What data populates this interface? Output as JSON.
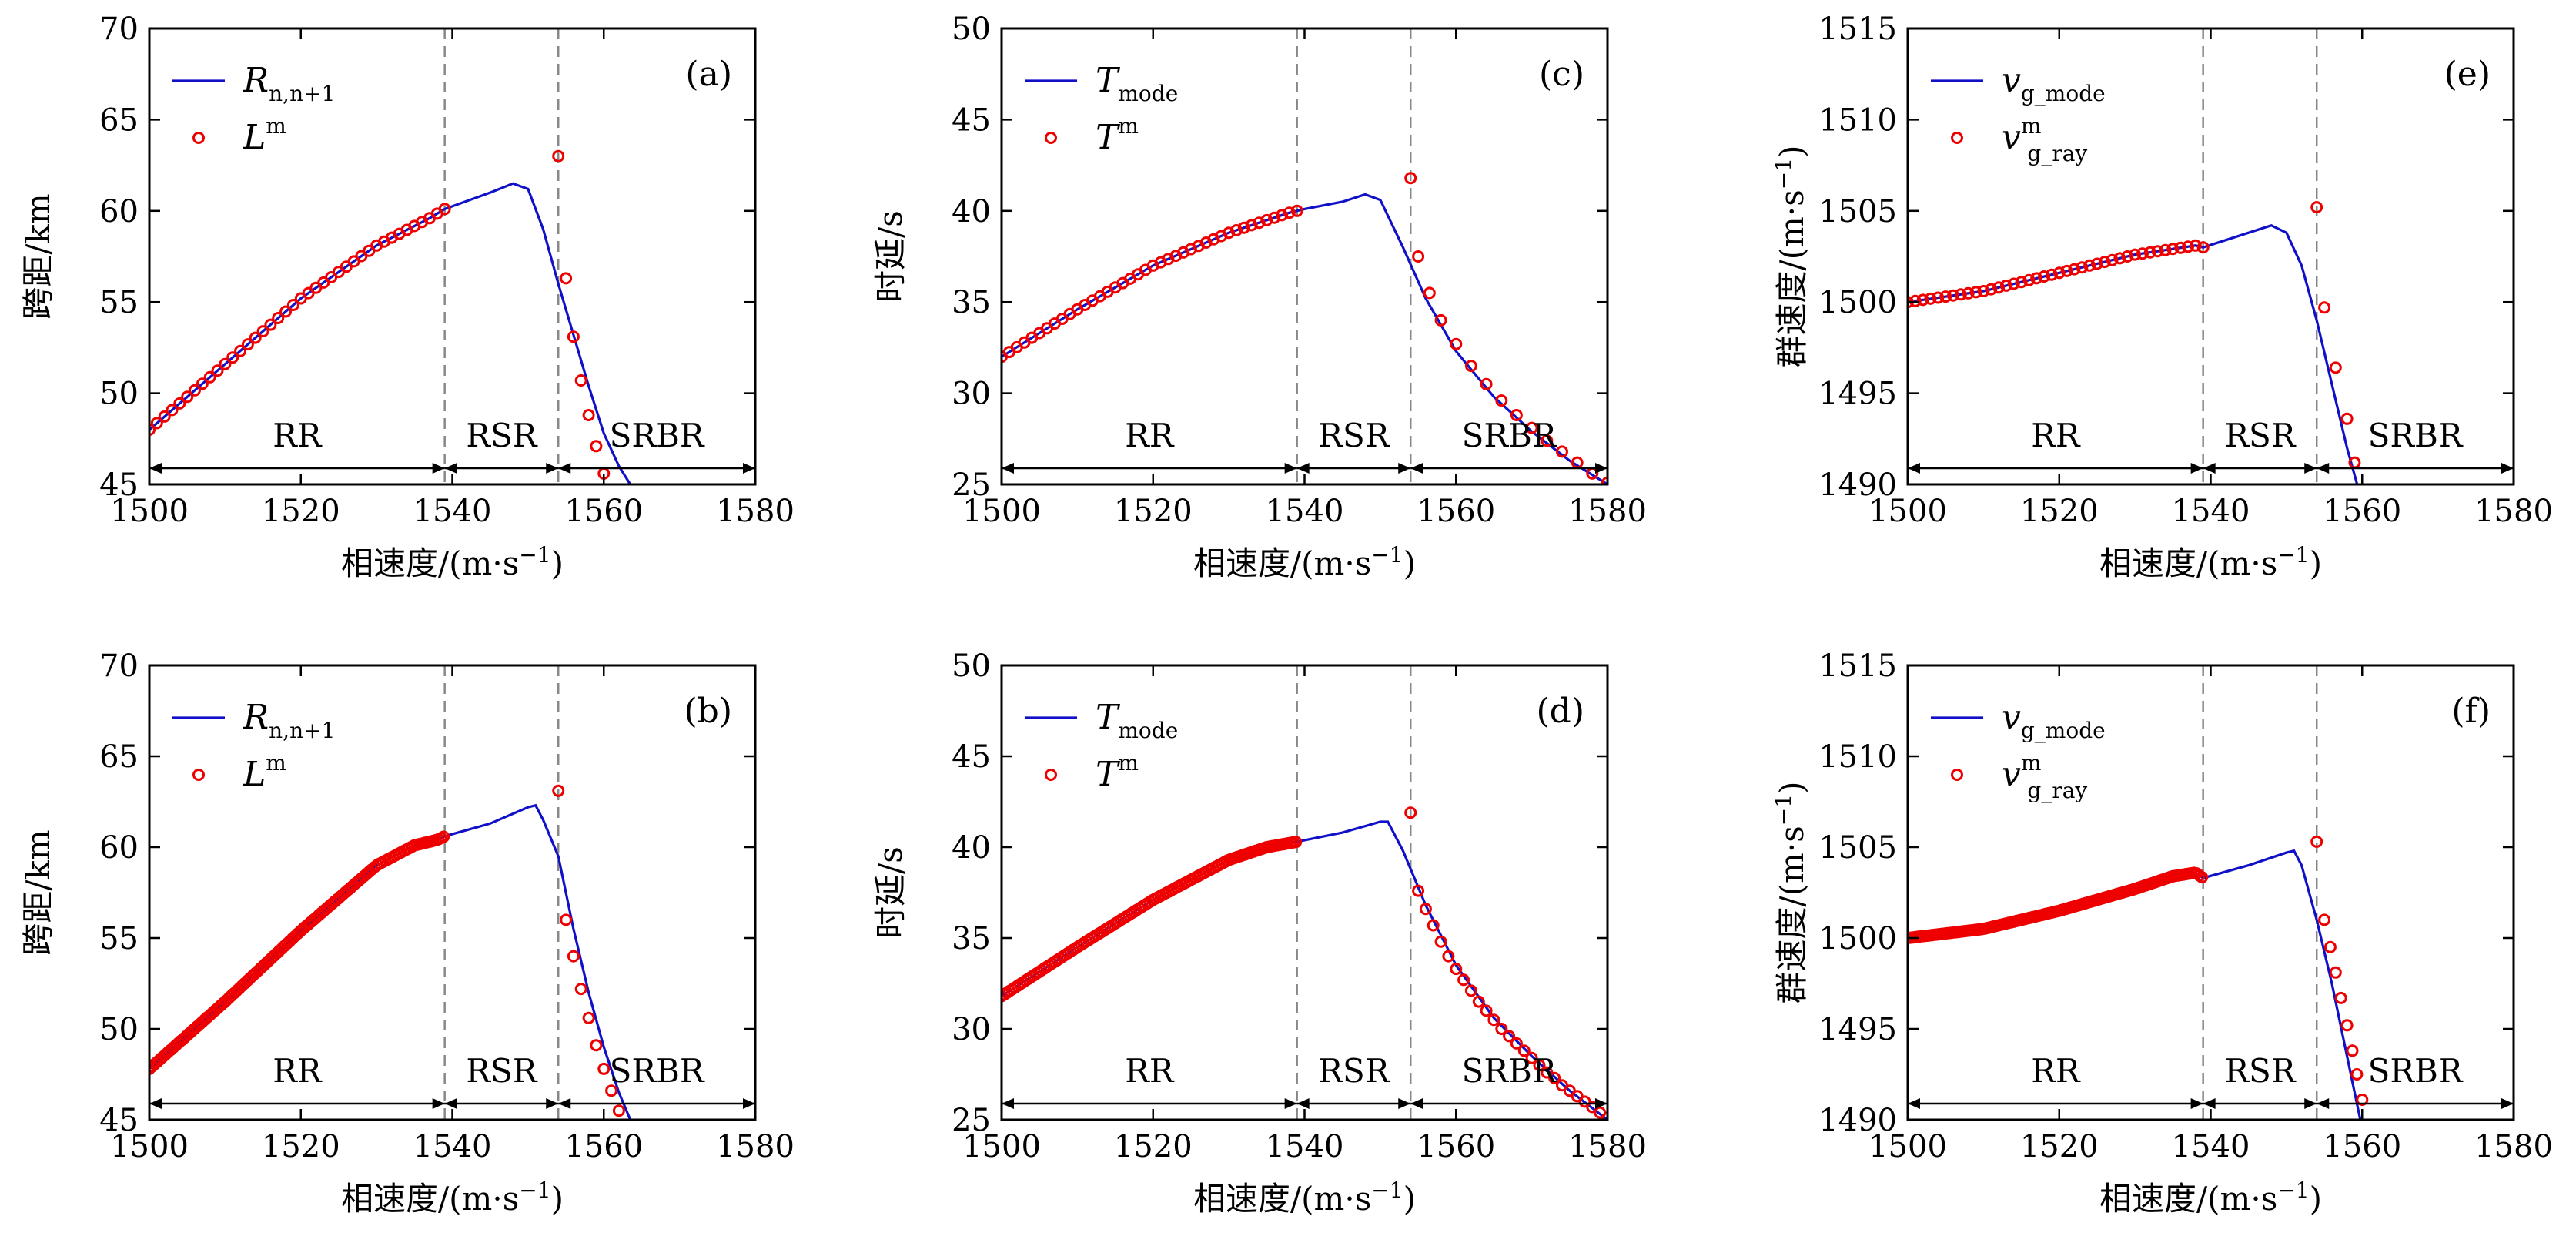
{
  "chart_data": [
    {
      "id": "a",
      "panel_label": "(a)",
      "type": "line+scatter",
      "ylabel": "跨距/km",
      "xlabel": "相速度/(m·s",
      "xlabel_sup": "−1",
      "xlabel_end": ")",
      "xlim": [
        1500,
        1580
      ],
      "ylim": [
        45,
        70
      ],
      "xticks": [
        1500,
        1520,
        1540,
        1560,
        1580
      ],
      "yticks": [
        45,
        50,
        55,
        60,
        65,
        70
      ],
      "boundaries": [
        1539,
        1554
      ],
      "regions": [
        {
          "label": "RR",
          "from": 1500,
          "to": 1539
        },
        {
          "label": "RSR",
          "from": 1539,
          "to": 1554
        },
        {
          "label": "SRBR",
          "from": 1554,
          "to": 1580
        }
      ],
      "legend": [
        {
          "kind": "line",
          "base": "R",
          "sub": "n,n+1",
          "sup": ""
        },
        {
          "kind": "marker",
          "base": "L",
          "sub": "",
          "sup": "m"
        }
      ],
      "line": {
        "x": [
          1500,
          1510,
          1520,
          1530,
          1537,
          1539,
          1545,
          1548,
          1550,
          1552,
          1554,
          1556,
          1558,
          1560,
          1562,
          1563.5
        ],
        "y": [
          48.0,
          51.6,
          55.2,
          58.1,
          59.6,
          60.1,
          61.0,
          61.5,
          61.2,
          59.0,
          56.0,
          53.2,
          50.4,
          47.8,
          46.0,
          45.0
        ]
      },
      "markers": {
        "step": 1.0,
        "x_end": 1539,
        "jump": [
          1554,
          63.0
        ],
        "tail": [
          [
            1555,
            56.3
          ],
          [
            1556,
            53.1
          ],
          [
            1557,
            50.7
          ],
          [
            1558,
            48.8
          ],
          [
            1559,
            47.1
          ],
          [
            1560,
            45.6
          ]
        ]
      }
    },
    {
      "id": "c",
      "panel_label": "(c)",
      "type": "line+scatter",
      "ylabel": "时延/s",
      "xlabel": "相速度/(m·s",
      "xlabel_sup": "−1",
      "xlabel_end": ")",
      "xlim": [
        1500,
        1580
      ],
      "ylim": [
        25,
        50
      ],
      "xticks": [
        1500,
        1520,
        1540,
        1560,
        1580
      ],
      "yticks": [
        25,
        30,
        35,
        40,
        45,
        50
      ],
      "boundaries": [
        1539,
        1554
      ],
      "regions": [
        {
          "label": "RR",
          "from": 1500,
          "to": 1539
        },
        {
          "label": "RSR",
          "from": 1539,
          "to": 1554
        },
        {
          "label": "SRBR",
          "from": 1554,
          "to": 1580
        }
      ],
      "legend": [
        {
          "kind": "line",
          "base": "T",
          "sub": "mode",
          "sup": ""
        },
        {
          "kind": "marker",
          "base": "T",
          "sub": "",
          "sup": "m"
        }
      ],
      "line": {
        "x": [
          1500,
          1510,
          1520,
          1530,
          1538,
          1540,
          1545,
          1548,
          1550,
          1553,
          1556,
          1560,
          1565,
          1570,
          1575,
          1580
        ],
        "y": [
          32.0,
          34.6,
          37.0,
          38.8,
          39.9,
          40.1,
          40.5,
          40.9,
          40.6,
          38.0,
          35.2,
          32.3,
          29.8,
          27.9,
          26.3,
          25.0
        ]
      },
      "markers": {
        "step": 1.0,
        "x_end": 1539,
        "jump": [
          1554,
          41.8
        ],
        "tail": [
          [
            1555,
            37.5
          ],
          [
            1556.5,
            35.5
          ],
          [
            1558,
            34.0
          ],
          [
            1560,
            32.7
          ],
          [
            1562,
            31.5
          ],
          [
            1564,
            30.5
          ],
          [
            1566,
            29.6
          ],
          [
            1568,
            28.8
          ],
          [
            1570,
            28.1
          ],
          [
            1572,
            27.4
          ],
          [
            1574,
            26.8
          ],
          [
            1576,
            26.2
          ],
          [
            1578,
            25.6
          ],
          [
            1580,
            25.1
          ]
        ]
      }
    },
    {
      "id": "e",
      "panel_label": "(e)",
      "type": "line+scatter",
      "ylabel": "群速度/(m·s",
      "ylabel_sup": "−1",
      "ylabel_end": ")",
      "xlabel": "相速度/(m·s",
      "xlabel_sup": "−1",
      "xlabel_end": ")",
      "xlim": [
        1500,
        1580
      ],
      "ylim": [
        1490,
        1515
      ],
      "xticks": [
        1500,
        1520,
        1540,
        1560,
        1580
      ],
      "yticks": [
        1490,
        1495,
        1500,
        1505,
        1510,
        1515
      ],
      "boundaries": [
        1539,
        1554
      ],
      "regions": [
        {
          "label": "RR",
          "from": 1500,
          "to": 1539
        },
        {
          "label": "RSR",
          "from": 1539,
          "to": 1554
        },
        {
          "label": "SRBR",
          "from": 1554,
          "to": 1580
        }
      ],
      "legend": [
        {
          "kind": "line",
          "base": "v",
          "sub": "g_mode",
          "sup": ""
        },
        {
          "kind": "marker",
          "base": "v",
          "sub": "g_ray",
          "sup": "m"
        }
      ],
      "line": {
        "x": [
          1500,
          1510,
          1520,
          1530,
          1538,
          1539,
          1545,
          1548,
          1550,
          1552,
          1554,
          1556,
          1558,
          1560
        ],
        "y": [
          1500.0,
          1500.6,
          1501.6,
          1502.6,
          1503.1,
          1503.0,
          1503.8,
          1504.2,
          1503.8,
          1502.0,
          1499.0,
          1495.5,
          1492.0,
          1489.0
        ]
      },
      "markers": {
        "step": 1.0,
        "x_end": 1539,
        "jump": [
          1554,
          1505.2
        ],
        "tail": [
          [
            1555,
            1499.7
          ],
          [
            1556.5,
            1496.4
          ],
          [
            1558,
            1493.6
          ],
          [
            1559,
            1491.2
          ]
        ]
      }
    },
    {
      "id": "b",
      "panel_label": "(b)",
      "type": "line+scatter",
      "ylabel": "跨距/km",
      "xlabel": "相速度/(m·s",
      "xlabel_sup": "−1",
      "xlabel_end": ")",
      "xlim": [
        1500,
        1580
      ],
      "ylim": [
        45,
        70
      ],
      "xticks": [
        1500,
        1520,
        1540,
        1560,
        1580
      ],
      "yticks": [
        45,
        50,
        55,
        60,
        65,
        70
      ],
      "boundaries": [
        1539,
        1554
      ],
      "regions": [
        {
          "label": "RR",
          "from": 1500,
          "to": 1539
        },
        {
          "label": "RSR",
          "from": 1539,
          "to": 1554
        },
        {
          "label": "SRBR",
          "from": 1554,
          "to": 1580
        }
      ],
      "legend": [
        {
          "kind": "line",
          "base": "R",
          "sub": "n,n+1",
          "sup": ""
        },
        {
          "kind": "marker",
          "base": "L",
          "sub": "",
          "sup": "m"
        }
      ],
      "line": {
        "x": [
          1500,
          1510,
          1520,
          1530,
          1535,
          1538,
          1539,
          1545,
          1550,
          1551,
          1552,
          1554,
          1556,
          1558,
          1560,
          1562,
          1563.5
        ],
        "y": [
          47.8,
          51.5,
          55.4,
          59.0,
          60.1,
          60.4,
          60.6,
          61.3,
          62.2,
          62.3,
          61.5,
          59.5,
          55.5,
          52.0,
          49.0,
          46.5,
          45.0
        ]
      },
      "markers": {
        "step": 0.35,
        "x_end": 1539,
        "jump": [
          1554,
          63.1
        ],
        "tail": [
          [
            1555,
            56.0
          ],
          [
            1556,
            54.0
          ],
          [
            1557,
            52.2
          ],
          [
            1558,
            50.6
          ],
          [
            1559,
            49.1
          ],
          [
            1560,
            47.8
          ],
          [
            1561,
            46.6
          ],
          [
            1562,
            45.5
          ]
        ]
      }
    },
    {
      "id": "d",
      "panel_label": "(d)",
      "type": "line+scatter",
      "ylabel": "时延/s",
      "xlabel": "相速度/(m·s",
      "xlabel_sup": "−1",
      "xlabel_end": ")",
      "xlim": [
        1500,
        1580
      ],
      "ylim": [
        25,
        50
      ],
      "xticks": [
        1500,
        1520,
        1540,
        1560,
        1580
      ],
      "yticks": [
        25,
        30,
        35,
        40,
        45,
        50
      ],
      "boundaries": [
        1539,
        1554
      ],
      "regions": [
        {
          "label": "RR",
          "from": 1500,
          "to": 1539
        },
        {
          "label": "RSR",
          "from": 1539,
          "to": 1554
        },
        {
          "label": "SRBR",
          "from": 1554,
          "to": 1580
        }
      ],
      "legend": [
        {
          "kind": "line",
          "base": "T",
          "sub": "mode",
          "sup": ""
        },
        {
          "kind": "marker",
          "base": "T",
          "sub": "",
          "sup": "m"
        }
      ],
      "line": {
        "x": [
          1500,
          1510,
          1520,
          1530,
          1535,
          1539,
          1545,
          1550,
          1551,
          1553,
          1556,
          1560,
          1565,
          1570,
          1575,
          1580
        ],
        "y": [
          31.8,
          34.5,
          37.1,
          39.3,
          40.0,
          40.3,
          40.8,
          41.4,
          41.4,
          39.8,
          36.8,
          33.5,
          30.6,
          28.5,
          26.6,
          25.0
        ]
      },
      "markers": {
        "step": 0.35,
        "x_end": 1539,
        "jump": [
          1554,
          41.9
        ],
        "tail": [
          [
            1555,
            37.6
          ],
          [
            1556,
            36.6
          ],
          [
            1557,
            35.7
          ],
          [
            1558,
            34.8
          ],
          [
            1559,
            34.0
          ],
          [
            1560,
            33.3
          ],
          [
            1561,
            32.7
          ],
          [
            1562,
            32.1
          ],
          [
            1563,
            31.5
          ],
          [
            1564,
            31.0
          ],
          [
            1565,
            30.5
          ],
          [
            1566,
            30.0
          ],
          [
            1567,
            29.6
          ],
          [
            1568,
            29.2
          ],
          [
            1569,
            28.8
          ],
          [
            1570,
            28.4
          ],
          [
            1571,
            28.0
          ],
          [
            1572,
            27.6
          ],
          [
            1573,
            27.3
          ],
          [
            1574,
            26.9
          ],
          [
            1575,
            26.6
          ],
          [
            1576,
            26.3
          ],
          [
            1577,
            26.0
          ],
          [
            1578,
            25.7
          ],
          [
            1579,
            25.4
          ],
          [
            1580,
            25.1
          ]
        ]
      }
    },
    {
      "id": "f",
      "panel_label": "(f)",
      "type": "line+scatter",
      "ylabel": "群速度/(m·s",
      "ylabel_sup": "−1",
      "ylabel_end": ")",
      "xlabel": "相速度/(m·s",
      "xlabel_sup": "−1",
      "xlabel_end": ")",
      "xlim": [
        1500,
        1580
      ],
      "ylim": [
        1490,
        1515
      ],
      "xticks": [
        1500,
        1520,
        1540,
        1560,
        1580
      ],
      "yticks": [
        1490,
        1495,
        1500,
        1505,
        1510,
        1515
      ],
      "boundaries": [
        1539,
        1554
      ],
      "regions": [
        {
          "label": "RR",
          "from": 1500,
          "to": 1539
        },
        {
          "label": "RSR",
          "from": 1539,
          "to": 1554
        },
        {
          "label": "SRBR",
          "from": 1554,
          "to": 1580
        }
      ],
      "legend": [
        {
          "kind": "line",
          "base": "v",
          "sub": "g_mode",
          "sup": ""
        },
        {
          "kind": "marker",
          "base": "v",
          "sub": "g_ray",
          "sup": "m"
        }
      ],
      "line": {
        "x": [
          1500,
          1510,
          1520,
          1530,
          1535,
          1538,
          1539,
          1545,
          1550,
          1551,
          1552,
          1554,
          1556,
          1558,
          1560
        ],
        "y": [
          1500.0,
          1500.5,
          1501.5,
          1502.7,
          1503.4,
          1503.6,
          1503.3,
          1504.0,
          1504.7,
          1504.8,
          1504.0,
          1501.0,
          1497.5,
          1493.5,
          1489.5
        ]
      },
      "markers": {
        "step": 0.35,
        "x_end": 1539,
        "jump": [
          1554,
          1505.3
        ],
        "tail": [
          [
            1555,
            1501.0
          ],
          [
            1555.8,
            1499.5
          ],
          [
            1556.5,
            1498.1
          ],
          [
            1557.2,
            1496.7
          ],
          [
            1558,
            1495.2
          ],
          [
            1558.7,
            1493.8
          ],
          [
            1559.3,
            1492.5
          ],
          [
            1560,
            1491.1
          ]
        ]
      }
    }
  ],
  "colors": {
    "line": "#1010c8",
    "marker": "#ee0000",
    "axis": "#000000",
    "divider": "#888888"
  }
}
